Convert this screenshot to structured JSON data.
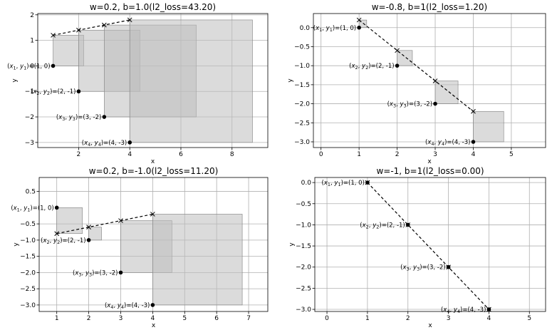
{
  "chart_data": [
    {
      "type": "scatter",
      "title": "w=0.2, b=1.0(l2_loss=43.20)",
      "xlabel": "x",
      "ylabel": "y",
      "xlim": [
        0.4,
        9.4
      ],
      "ylim": [
        -3.2,
        2.05
      ],
      "xticks": [
        2,
        4,
        6,
        8
      ],
      "yticks": [
        -3,
        -2,
        -1,
        0,
        1,
        2
      ],
      "grid": true,
      "w": 0.2,
      "b": 1.0,
      "points": [
        {
          "x": 1,
          "y": 0,
          "label": "(x1, y1)=(1, 0)"
        },
        {
          "x": 2,
          "y": -1,
          "label": "(x2, y2)=(2, -1)"
        },
        {
          "x": 3,
          "y": -2,
          "label": "(x3, y3)=(3, -2)"
        },
        {
          "x": 4,
          "y": -3,
          "label": "(x4, y4)=(4, -3)"
        }
      ],
      "predictions": [
        {
          "x": 1,
          "y": 1.2
        },
        {
          "x": 2,
          "y": 1.4
        },
        {
          "x": 3,
          "y": 1.6
        },
        {
          "x": 4,
          "y": 1.8
        }
      ]
    },
    {
      "type": "scatter",
      "title": "w=-0.8, b=1(l2_loss=1.20)",
      "xlabel": "x",
      "ylabel": "y",
      "xlim": [
        -0.2,
        5.9
      ],
      "ylim": [
        -3.15,
        0.37
      ],
      "xticks": [
        0,
        1,
        2,
        3,
        4,
        5
      ],
      "yticks": [
        -3.0,
        -2.5,
        -2.0,
        -1.5,
        -1.0,
        -0.5,
        0.0
      ],
      "grid": true,
      "w": -0.8,
      "b": 1,
      "points": [
        {
          "x": 1,
          "y": 0,
          "label": "(x1, y1)=(1, 0)"
        },
        {
          "x": 2,
          "y": -1,
          "label": "(x2, y2)=(2, -1)"
        },
        {
          "x": 3,
          "y": -2,
          "label": "(x3, y3)=(3, -2)"
        },
        {
          "x": 4,
          "y": -3,
          "label": "(x4, y4)=(4, -3)"
        }
      ],
      "predictions": [
        {
          "x": 1,
          "y": 0.2
        },
        {
          "x": 2,
          "y": -0.6
        },
        {
          "x": 3,
          "y": -1.4
        },
        {
          "x": 4,
          "y": -2.2
        }
      ]
    },
    {
      "type": "scatter",
      "title": "w=0.2, b=-1.0(l2_loss=11.20)",
      "xlabel": "x",
      "ylabel": "y",
      "xlim": [
        0.45,
        7.6
      ],
      "ylim": [
        -3.2,
        0.93
      ],
      "xticks": [
        1,
        2,
        3,
        4,
        5,
        6,
        7
      ],
      "yticks": [
        -3.0,
        -2.5,
        -2.0,
        -1.5,
        -1.0,
        -0.5,
        0.5
      ],
      "grid": true,
      "w": 0.2,
      "b": -1.0,
      "points": [
        {
          "x": 1,
          "y": 0,
          "label": "(x1, y1)=(1, 0)"
        },
        {
          "x": 2,
          "y": -1,
          "label": "(x2, y2)=(2, -1)"
        },
        {
          "x": 3,
          "y": -2,
          "label": "(x3, y3)=(3, -2)"
        },
        {
          "x": 4,
          "y": -3,
          "label": "(x4, y4)=(4, -3)"
        }
      ],
      "predictions": [
        {
          "x": 1,
          "y": -0.8
        },
        {
          "x": 2,
          "y": -0.6
        },
        {
          "x": 3,
          "y": -0.4
        },
        {
          "x": 4,
          "y": -0.2
        }
      ]
    },
    {
      "type": "scatter",
      "title": "w=-1, b=1(l2_loss=0.00)",
      "xlabel": "x",
      "ylabel": "y",
      "xlim": [
        -0.3,
        5.4
      ],
      "ylim": [
        -3.05,
        0.12
      ],
      "xticks": [
        0,
        1,
        2,
        3,
        4,
        5
      ],
      "yticks": [
        -3.0,
        -2.5,
        -2.0,
        -1.5,
        -1.0,
        -0.5,
        0.0
      ],
      "grid": true,
      "w": -1,
      "b": 1,
      "points": [
        {
          "x": 1,
          "y": 0,
          "label": "(x1, y1)=(1, 0)"
        },
        {
          "x": 2,
          "y": -1,
          "label": "(x2, y2)=(2, -1)"
        },
        {
          "x": 3,
          "y": -2,
          "label": "(x3, y3)=(3, -2)"
        },
        {
          "x": 4,
          "y": -3,
          "label": "(x4, y4)=(4, -3)"
        }
      ],
      "predictions": [
        {
          "x": 1,
          "y": 0
        },
        {
          "x": 2,
          "y": -1
        },
        {
          "x": 3,
          "y": -2
        },
        {
          "x": 4,
          "y": -3
        }
      ]
    }
  ]
}
